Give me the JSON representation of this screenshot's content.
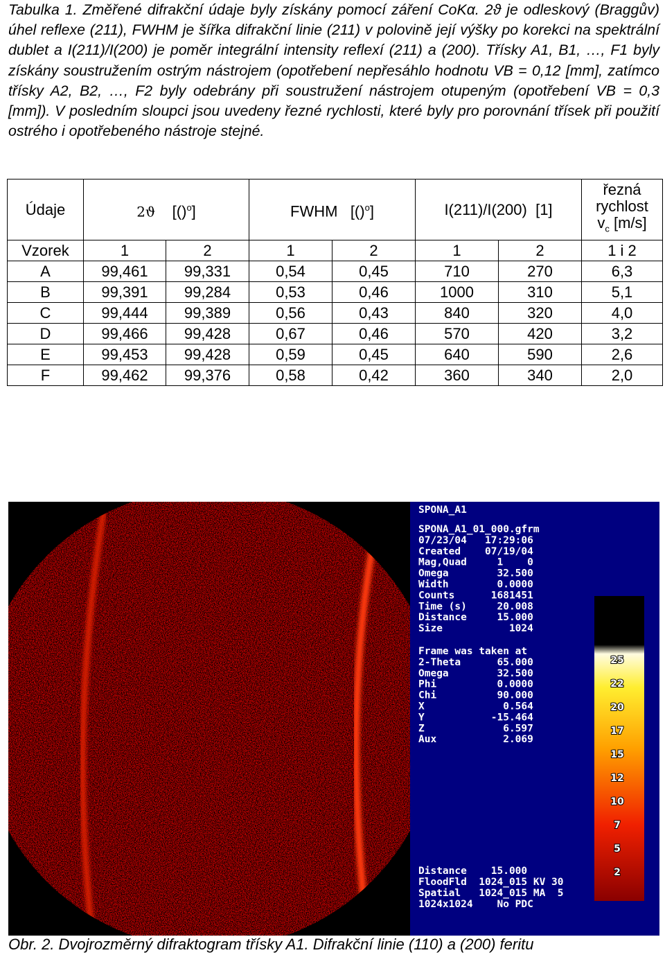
{
  "caption": "Tabulka 1. Změřené difrakční údaje byly získány pomocí záření CoKα. 2ϑ je odleskový (Braggův) úhel reflexe (211), FWHM je šířka difrakční linie (211) v polovině její výšky po korekci na spektrální dublet a I(211)/I(200) je poměr integrální intensity reflexí (211) a (200). Třísky A1, B1, …, F1 byly získány soustružením ostrým nástrojem (opotřebení nepřesáhlo hodnotu VB = 0,12 [mm], zatímco třísky A2, B2, …, F2 byly odebrány při soustružení nástrojem otupeným (opotřebení VB = 0,3 [mm]). V posledním sloupci jsou uvedeny řezné rychlosti, které byly pro porovnání třísek při použití ostrého i opotřebeného nástroje stejné.",
  "table": {
    "header": {
      "label": "Údaje",
      "theta": "2ϑ",
      "theta_unit": "[()",
      "theta_sup": "o",
      "theta_end": "]",
      "fwhm": "FWHM",
      "fwhm_unit": "[()",
      "fwhm_sup": "o",
      "fwhm_end": "]",
      "ratio": "I(211)/I(200)  [1]",
      "speed_1": "řezná",
      "speed_2": "rychlost",
      "speed_v": "v",
      "speed_sub": "c",
      "speed_unit": "[m/s]"
    },
    "subheader": [
      "Vzorek",
      "1",
      "2",
      "1",
      "2",
      "1",
      "2",
      "1 i 2"
    ],
    "rows": [
      [
        "A",
        "99,461",
        "99,331",
        "0,54",
        "0,45",
        "710",
        "270",
        "6,3"
      ],
      [
        "B",
        "99,391",
        "99,284",
        "0,53",
        "0,46",
        "1000",
        "310",
        "5,1"
      ],
      [
        "C",
        "99,444",
        "99,389",
        "0,56",
        "0,43",
        "840",
        "320",
        "4,0"
      ],
      [
        "D",
        "99,466",
        "99,428",
        "0,67",
        "0,46",
        "570",
        "420",
        "3,2"
      ],
      [
        "E",
        "99,453",
        "99,428",
        "0,59",
        "0,45",
        "640",
        "590",
        "2,6"
      ],
      [
        "F",
        "99,462",
        "99,376",
        "0,58",
        "0,42",
        "360",
        "340",
        "2,0"
      ]
    ]
  },
  "figure": {
    "title": "SPONA_A1",
    "info_lines": [
      "SPONA_A1_01_000.gfrm",
      "07/23/04   17:29:06",
      "Created    07/19/04",
      "Mag,Quad     1    0",
      "Omega        32.500",
      "Width        0.0000",
      "Counts      1681451",
      "Time (s)     20.008",
      "Distance     15.000",
      "Size           1024"
    ],
    "frame_lines": [
      "Frame was taken at",
      "2-Theta      65.000",
      "Omega        32.500",
      "Phi          0.0000",
      "Chi          90.000",
      "X             0.564",
      "Y           -15.464",
      "Z             6.597",
      "Aux           2.069"
    ],
    "footer_lines": [
      "Distance    15.000",
      "FloodFld  1024_015 KV 30",
      "Spatial   1024_015 MA  5",
      "1024x1024    No PDC"
    ],
    "scale_labels": [
      "25",
      "22",
      "20",
      "17",
      "15",
      "12",
      "10",
      "7",
      "5",
      "2"
    ]
  },
  "figure_caption": "Obr. 2. Dvojrozměrný difraktogram třísky A1. Difrakční linie (110) a (200) feritu"
}
